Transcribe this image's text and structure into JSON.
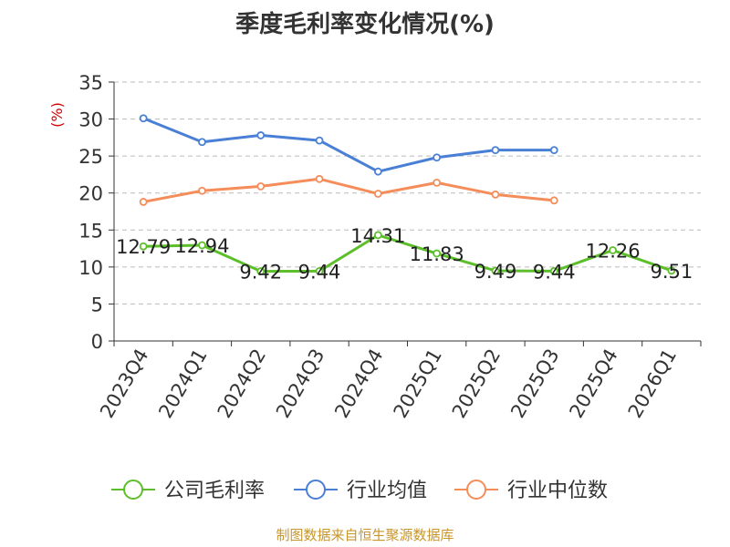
{
  "page_title": "季度毛利率变化情况(%)",
  "source_note": "制图数据来自恒生聚源数据库",
  "colors": {
    "company": "#5cbf2a",
    "industry_avg": "#4a7fd6",
    "industry_median": "#f58d5a",
    "ylabel": "#cc0000",
    "axis": "#333333",
    "grid": "#bbbbbb",
    "title": "#333333",
    "source": "#c8962c"
  },
  "chart_data": {
    "type": "line",
    "title": "季度毛利率变化情况(%)",
    "ylabel": "(%)",
    "xlabel": "",
    "ylim": [
      0,
      35
    ],
    "yticks": [
      0,
      5,
      10,
      15,
      20,
      25,
      30,
      35
    ],
    "grid": true,
    "legend_position": "bottom",
    "categories": [
      "2023Q4",
      "2024Q1",
      "2024Q2",
      "2024Q3",
      "2024Q4",
      "2025Q1",
      "2025Q2",
      "2025Q3",
      "2025Q4",
      "2026Q1"
    ],
    "series": [
      {
        "key": "company",
        "name": "公司毛利率",
        "values": [
          12.79,
          12.94,
          9.42,
          9.44,
          14.31,
          11.83,
          9.49,
          9.44,
          12.26,
          9.51
        ],
        "labels": [
          "12.79",
          "12.94",
          "9.42",
          "9.44",
          "14.31",
          "11.83",
          "9.49",
          "9.44",
          "12.26",
          "9.51"
        ],
        "show_labels": true
      },
      {
        "key": "industry_avg",
        "name": "行业均值",
        "values": [
          30.1,
          26.9,
          27.8,
          27.1,
          22.9,
          24.8,
          25.8,
          25.8,
          null,
          null
        ],
        "show_labels": false
      },
      {
        "key": "industry_median",
        "name": "行业中位数",
        "values": [
          18.8,
          20.3,
          20.9,
          21.9,
          19.9,
          21.4,
          19.8,
          19.0,
          null,
          null
        ],
        "show_labels": false
      }
    ]
  }
}
